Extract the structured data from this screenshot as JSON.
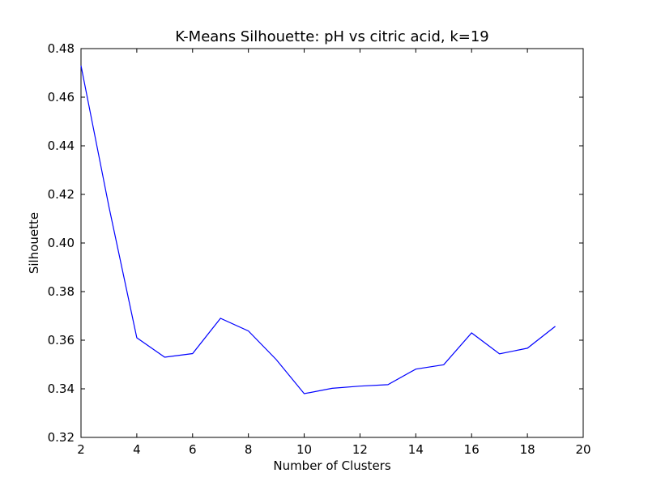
{
  "chart_data": {
    "type": "line",
    "title": "K-Means Silhouette: pH vs citric acid, k=19",
    "xlabel": "Number of Clusters",
    "ylabel": "Silhouette",
    "xlim": [
      2,
      20
    ],
    "ylim": [
      0.32,
      0.48
    ],
    "xticks": [
      2,
      4,
      6,
      8,
      10,
      12,
      14,
      16,
      18,
      20
    ],
    "yticks": [
      0.32,
      0.34,
      0.36,
      0.38,
      0.4,
      0.42,
      0.44,
      0.46,
      0.48
    ],
    "xtick_labels": [
      "2",
      "4",
      "6",
      "8",
      "10",
      "12",
      "14",
      "16",
      "18",
      "20"
    ],
    "ytick_labels": [
      "0.32",
      "0.34",
      "0.36",
      "0.38",
      "0.40",
      "0.42",
      "0.44",
      "0.46",
      "0.48"
    ],
    "grid": false,
    "series": [
      {
        "color": "#0000ff",
        "x": [
          2,
          3,
          4,
          5,
          6,
          7,
          8,
          9,
          10,
          11,
          12,
          13,
          14,
          15,
          16,
          17,
          18,
          19
        ],
        "y": [
          0.473,
          0.415,
          0.361,
          0.353,
          0.3545,
          0.369,
          0.3638,
          0.352,
          0.338,
          0.3402,
          0.3411,
          0.3417,
          0.3481,
          0.3499,
          0.363,
          0.3544,
          0.3567,
          0.3657
        ]
      }
    ]
  }
}
